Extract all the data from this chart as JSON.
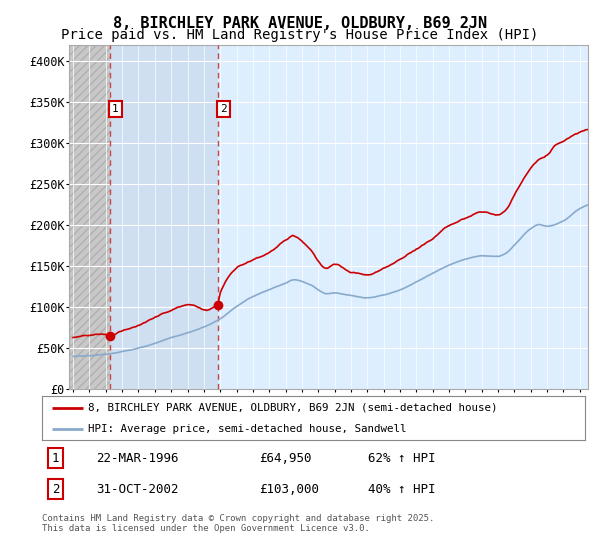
{
  "title": "8, BIRCHLEY PARK AVENUE, OLDBURY, B69 2JN",
  "subtitle": "Price paid vs. HM Land Registry's House Price Index (HPI)",
  "ylim": [
    0,
    420000
  ],
  "yticks": [
    0,
    50000,
    100000,
    150000,
    200000,
    250000,
    300000,
    350000,
    400000
  ],
  "ytick_labels": [
    "£0",
    "£50K",
    "£100K",
    "£150K",
    "£200K",
    "£250K",
    "£300K",
    "£350K",
    "£400K"
  ],
  "xlim_start": 1993.75,
  "xlim_end": 2025.5,
  "hatch_end": 1996.23,
  "shade2_end": 2002.84,
  "dashed_line1_x": 1996.23,
  "dashed_line2_x": 2002.84,
  "marker1_x": 1996.23,
  "marker1_y": 64950,
  "marker2_x": 2002.84,
  "marker2_y": 103000,
  "house_color": "#cc0000",
  "hpi_color": "#88aacc",
  "legend_house": "8, BIRCHLEY PARK AVENUE, OLDBURY, B69 2JN (semi-detached house)",
  "legend_hpi": "HPI: Average price, semi-detached house, Sandwell",
  "transaction1_date": "22-MAR-1996",
  "transaction1_price": "£64,950",
  "transaction1_hpi": "62% ↑ HPI",
  "transaction2_date": "31-OCT-2002",
  "transaction2_price": "£103,000",
  "transaction2_hpi": "40% ↑ HPI",
  "footer": "Contains HM Land Registry data © Crown copyright and database right 2025.\nThis data is licensed under the Open Government Licence v3.0.",
  "background_chart": "#ddeeff",
  "grid_color": "#ffffff",
  "title_fontsize": 11,
  "subtitle_fontsize": 10
}
